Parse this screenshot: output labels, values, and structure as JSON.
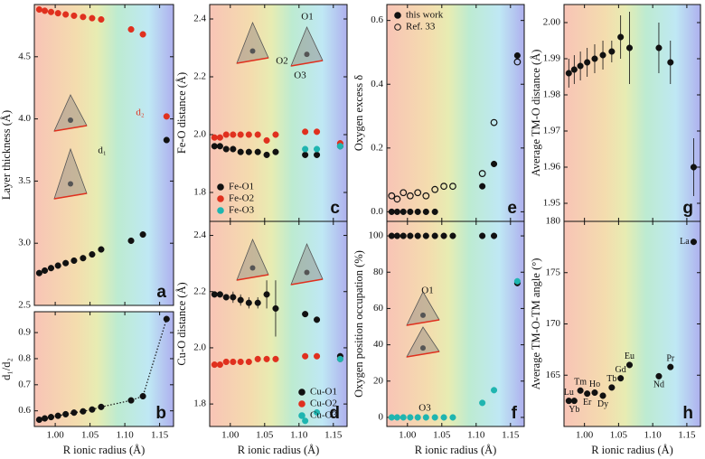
{
  "chart_data": [
    {
      "type": "scatter",
      "panel_label": "a",
      "ylabel": "Layer thickness (Å)",
      "x": [
        0.977,
        0.985,
        0.994,
        1.004,
        1.015,
        1.027,
        1.04,
        1.053,
        1.066,
        1.109,
        1.126,
        1.16
      ],
      "series": [
        {
          "color": "#e0301e",
          "values": [
            4.88,
            4.87,
            4.86,
            4.85,
            4.84,
            4.83,
            4.82,
            4.81,
            4.8,
            4.72,
            4.68,
            4.02
          ]
        },
        {
          "color": "#111111",
          "values": [
            2.76,
            2.78,
            2.8,
            2.82,
            2.84,
            2.86,
            2.88,
            2.91,
            2.95,
            3.02,
            3.07,
            3.83
          ]
        }
      ],
      "xlim": [
        0.97,
        1.17
      ],
      "xticks": [
        1,
        1.05,
        1.1,
        1.15
      ],
      "ylim": [
        2.5,
        4.92
      ],
      "yticks": [
        2.5,
        {
          "value": 3,
          "label": "3.0"
        },
        3.5,
        {
          "value": 4,
          "label": "4.0"
        },
        4.5
      ],
      "annotations": [
        "d₂",
        "d₁"
      ]
    },
    {
      "type": "scatter",
      "panel_label": "b",
      "ylabel": "d₁/d₂",
      "xlabel": "R ionic radius (Å)",
      "line_style": "dotted",
      "x": [
        0.977,
        0.985,
        0.994,
        1.004,
        1.015,
        1.027,
        1.04,
        1.053,
        1.066,
        1.109,
        1.126,
        1.16
      ],
      "series": [
        {
          "color": "#111111",
          "values": [
            0.566,
            0.571,
            0.576,
            0.581,
            0.587,
            0.593,
            0.598,
            0.605,
            0.615,
            0.64,
            0.656,
            0.952
          ]
        }
      ],
      "xlim": [
        0.97,
        1.17
      ],
      "xticks": [
        {
          "value": 1,
          "label": "1.00"
        },
        1.05,
        {
          "value": 1.1,
          "label": "1.10"
        },
        1.15
      ],
      "ylim": [
        0.54,
        0.98
      ],
      "yticks": [
        0.6,
        0.7,
        0.8,
        0.9
      ]
    },
    {
      "type": "scatter",
      "panel_label": "c",
      "ylabel": "Fe-O distance (Å)",
      "legend": "lower-left",
      "x": [
        0.977,
        0.985,
        0.994,
        1.004,
        1.015,
        1.027,
        1.04,
        1.053,
        1.066,
        1.109,
        1.126,
        1.16
      ],
      "series": [
        {
          "name": "Fe-O1",
          "color": "#111111",
          "values": [
            1.96,
            1.96,
            1.95,
            1.95,
            1.94,
            1.94,
            1.94,
            1.93,
            1.94,
            1.93,
            1.93,
            1.96
          ]
        },
        {
          "name": "Fe-O2",
          "color": "#e0301e",
          "values": [
            1.99,
            1.99,
            2.0,
            2.0,
            2.0,
            2.0,
            2.0,
            1.98,
            2.0,
            2.01,
            2.01,
            1.97
          ]
        },
        {
          "name": "Fe-O3",
          "color": "#1fb5b0",
          "values": [
            null,
            null,
            null,
            null,
            null,
            null,
            null,
            null,
            null,
            1.95,
            1.95,
            1.96
          ]
        }
      ],
      "xlim": [
        0.97,
        1.17
      ],
      "xticks": [
        1,
        1.05,
        1.1,
        1.15
      ],
      "ylim": [
        1.7,
        2.45
      ],
      "yticks": [
        1.8,
        {
          "value": 2,
          "label": "2.0"
        },
        2.2,
        2.4
      ],
      "annotations": [
        "O1",
        "O2",
        "O3"
      ]
    },
    {
      "type": "scatter",
      "panel_label": "d",
      "ylabel": "Cu-O distance (Å)",
      "xlabel": "R ionic radius (Å)",
      "legend": "lower-right",
      "x": [
        0.977,
        0.985,
        0.994,
        1.004,
        1.015,
        1.027,
        1.04,
        1.053,
        1.066,
        1.109,
        1.126,
        1.16
      ],
      "series": [
        {
          "name": "Cu-O1",
          "color": "#111111",
          "values": [
            2.19,
            2.19,
            2.18,
            2.18,
            2.17,
            2.16,
            2.16,
            2.19,
            2.14,
            2.12,
            2.1,
            1.97
          ],
          "errors": [
            0.01,
            0.01,
            0.01,
            0.02,
            0.02,
            0.02,
            0.02,
            0.05,
            0.1,
            0.01,
            0.01,
            0.01
          ]
        },
        {
          "name": "Cu-O2",
          "color": "#e0301e",
          "values": [
            1.94,
            1.94,
            1.95,
            1.95,
            1.95,
            1.95,
            1.96,
            1.96,
            1.96,
            1.97,
            1.97,
            1.96
          ]
        },
        {
          "name": "Cu-O3",
          "color": "#1fb5b0",
          "values": [
            null,
            null,
            null,
            null,
            null,
            null,
            null,
            null,
            null,
            1.74,
            1.77,
            1.96
          ]
        }
      ],
      "xlim": [
        0.97,
        1.17
      ],
      "xticks": [
        {
          "value": 1,
          "label": "1.00"
        },
        1.05,
        {
          "value": 1.1,
          "label": "1.10"
        },
        1.15
      ],
      "ylim": [
        1.72,
        2.45
      ],
      "yticks": [
        1.8,
        {
          "value": 2,
          "label": "2.0"
        },
        2.2,
        2.4
      ]
    },
    {
      "type": "scatter",
      "panel_label": "e",
      "ylabel": "Oxygen excess δ",
      "legend": "upper-left",
      "x": [
        0.977,
        0.985,
        0.994,
        1.004,
        1.015,
        1.027,
        1.04,
        1.053,
        1.066,
        1.109,
        1.126,
        1.16
      ],
      "series": [
        {
          "name": "this work",
          "color": "#111111",
          "values": [
            0,
            0,
            0,
            0,
            0,
            0,
            0,
            null,
            null,
            0.08,
            0.15,
            0.49
          ]
        },
        {
          "name": "Ref. 33",
          "color": "#111111",
          "marker": "open",
          "values": [
            0.05,
            0.04,
            0.06,
            0.05,
            0.06,
            0.05,
            0.07,
            0.08,
            0.08,
            0.12,
            0.28,
            0.47
          ]
        }
      ],
      "xlim": [
        0.97,
        1.17
      ],
      "xticks": [
        1,
        1.05,
        1.1,
        1.15
      ],
      "ylim": [
        -0.03,
        0.65
      ],
      "yticks": [
        {
          "value": 0,
          "label": "0.0"
        },
        0.2,
        0.4,
        0.6
      ]
    },
    {
      "type": "scatter",
      "panel_label": "f",
      "ylabel": "Oxygen position occupation (%)",
      "xlabel": "R ionic radius (Å)",
      "x": [
        0.977,
        0.985,
        0.994,
        1.004,
        1.015,
        1.027,
        1.04,
        1.053,
        1.066,
        1.109,
        1.126,
        1.16
      ],
      "series": [
        {
          "color": "#111111",
          "values": [
            100,
            100,
            100,
            100,
            100,
            100,
            100,
            100,
            100,
            100,
            100,
            74
          ]
        },
        {
          "color": "#1fb5b0",
          "values": [
            0,
            0,
            0,
            0,
            0,
            0,
            0,
            0,
            0,
            8,
            15,
            75
          ]
        }
      ],
      "xlim": [
        0.97,
        1.17
      ],
      "xticks": [
        {
          "value": 1,
          "label": "1.00"
        },
        1.05,
        {
          "value": 1.1,
          "label": "1.10"
        },
        1.15
      ],
      "ylim": [
        -5,
        108
      ],
      "yticks": [
        0,
        20,
        40,
        60,
        80,
        100
      ],
      "annotations": [
        "O1",
        "O3"
      ]
    },
    {
      "type": "scatter",
      "panel_label": "g",
      "ylabel": "Average TM-O distance (Å)",
      "x": [
        0.977,
        0.985,
        0.994,
        1.004,
        1.015,
        1.027,
        1.04,
        1.053,
        1.066,
        1.109,
        1.126,
        1.16
      ],
      "series": [
        {
          "color": "#111111",
          "values": [
            1.986,
            1.987,
            1.988,
            1.989,
            1.99,
            1.991,
            1.992,
            1.996,
            1.993,
            1.993,
            1.989,
            1.96
          ],
          "errors": [
            0.004,
            0.004,
            0.004,
            0.004,
            0.004,
            0.004,
            0.003,
            0.006,
            0.01,
            0.007,
            0.006,
            0.008
          ]
        }
      ],
      "xlim": [
        0.97,
        1.17
      ],
      "xticks": [
        1,
        1.05,
        1.1,
        1.15
      ],
      "ylim": [
        1.945,
        2.005
      ],
      "yticks": [
        1.95,
        1.96,
        1.97,
        1.98,
        1.99,
        {
          "value": 2,
          "label": "2.00"
        }
      ]
    },
    {
      "type": "scatter",
      "panel_label": "h",
      "ylabel": "Average TM-O-TM angle (°)",
      "xlabel": "R ionic radius (Å)",
      "x": [
        0.977,
        0.985,
        0.994,
        1.004,
        1.015,
        1.027,
        1.04,
        1.053,
        1.066,
        1.109,
        1.126,
        1.16
      ],
      "series": [
        {
          "color": "#111111",
          "values": [
            162.5,
            162.5,
            163.5,
            163.2,
            163.3,
            163.0,
            163.8,
            164.7,
            166.0,
            164.9,
            165.8,
            178.0
          ],
          "point_labels": [
            "Lu",
            "Yb",
            "Tm",
            "Er",
            "Ho",
            "Dy",
            "Tb",
            "Gd",
            "Eu",
            "Nd",
            "Pr",
            "La"
          ]
        }
      ],
      "xlim": [
        0.97,
        1.17
      ],
      "xticks": [
        {
          "value": 1,
          "label": "1.00"
        },
        1.05,
        {
          "value": 1.1,
          "label": "1.10"
        },
        1.15
      ],
      "ylim": [
        160,
        180
      ],
      "yticks": [
        165,
        170,
        175,
        180
      ]
    }
  ]
}
